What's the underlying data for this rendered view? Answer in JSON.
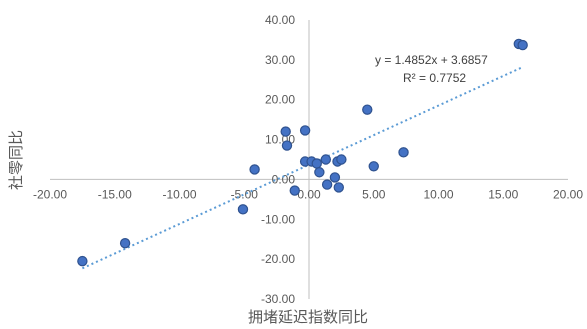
{
  "chart_data": {
    "type": "scatter",
    "title": "",
    "xlabel": "拥堵延迟指数同比",
    "ylabel": "社零同比",
    "xlim": [
      -20,
      20
    ],
    "ylim": [
      -30,
      40
    ],
    "x_ticks": [
      "-20.00",
      "-15.00",
      "-10.00",
      "-5.00",
      "0.00",
      "5.00",
      "10.00",
      "15.00",
      "20.00"
    ],
    "y_ticks": [
      "40.00",
      "30.00",
      "20.00",
      "10.00",
      "0.00",
      "-10.00",
      "-20.00",
      "-30.00"
    ],
    "grid": false,
    "marker_color": "#4472C4",
    "trendline_color": "#5B9BD5",
    "trendline": {
      "slope": 1.4852,
      "intercept": 3.6857,
      "x_range": [
        -17.5,
        16.5
      ]
    },
    "annotations": [
      "y = 1.4852x + 3.6857",
      "R² = 0.7752"
    ],
    "points": [
      {
        "x": -17.5,
        "y": -20.5
      },
      {
        "x": -14.2,
        "y": -16.0
      },
      {
        "x": -5.1,
        "y": -7.5
      },
      {
        "x": -4.2,
        "y": 2.5
      },
      {
        "x": -1.8,
        "y": 12.0
      },
      {
        "x": -1.7,
        "y": 8.5
      },
      {
        "x": -1.1,
        "y": -2.8
      },
      {
        "x": -0.3,
        "y": 12.3
      },
      {
        "x": -0.3,
        "y": 4.5
      },
      {
        "x": 0.2,
        "y": 4.5
      },
      {
        "x": 0.6,
        "y": 4.0
      },
      {
        "x": 0.8,
        "y": 1.8
      },
      {
        "x": 1.3,
        "y": 5.0
      },
      {
        "x": 1.4,
        "y": -1.3
      },
      {
        "x": 2.0,
        "y": 0.5
      },
      {
        "x": 2.2,
        "y": 4.5
      },
      {
        "x": 2.3,
        "y": -2.0
      },
      {
        "x": 2.5,
        "y": 5.0
      },
      {
        "x": 4.5,
        "y": 17.5
      },
      {
        "x": 5.0,
        "y": 3.3
      },
      {
        "x": 7.3,
        "y": 6.8
      },
      {
        "x": 16.2,
        "y": 34.0
      },
      {
        "x": 16.5,
        "y": 33.7
      }
    ]
  }
}
